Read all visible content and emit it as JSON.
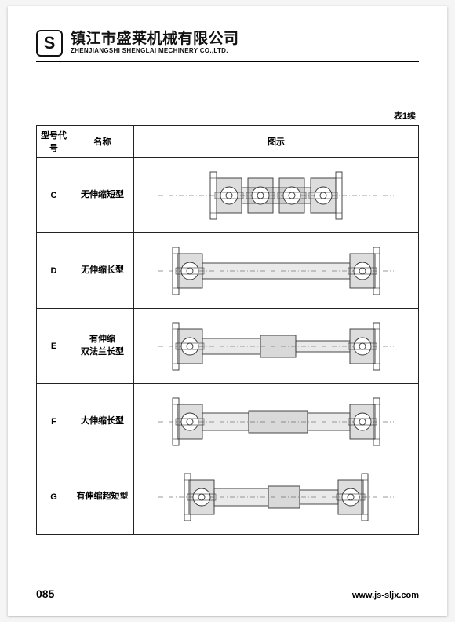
{
  "header": {
    "logo_letter": "S",
    "company_cn": "镇江市盛莱机械有限公司",
    "company_en": "ZHENJIANGSHI SHENGLAI MECHINERY CO.,LTD."
  },
  "table": {
    "continuation_label": "表1续",
    "columns": [
      "型号代号",
      "名称",
      "图示"
    ],
    "rows": [
      {
        "code": "C",
        "name": "无伸缩短型",
        "fig_type": "short"
      },
      {
        "code": "D",
        "name": "无伸缩长型",
        "fig_type": "long_fixed"
      },
      {
        "code": "E",
        "name": "有伸缩\n双法兰长型",
        "fig_type": "tele_double_flange"
      },
      {
        "code": "F",
        "name": "大伸缩长型",
        "fig_type": "tele_large"
      },
      {
        "code": "G",
        "name": "有伸缩超短型",
        "fig_type": "tele_ultra_short"
      }
    ]
  },
  "drawing": {
    "stroke": "#333333",
    "stroke_width": 0.9,
    "centerline_dash": "6 3 1 3",
    "joint_color": "#777777",
    "shaft_color": "#888888",
    "sleeve_color": "#666666"
  },
  "footer": {
    "page_number": "085",
    "url": "www.js-sljx.com"
  }
}
